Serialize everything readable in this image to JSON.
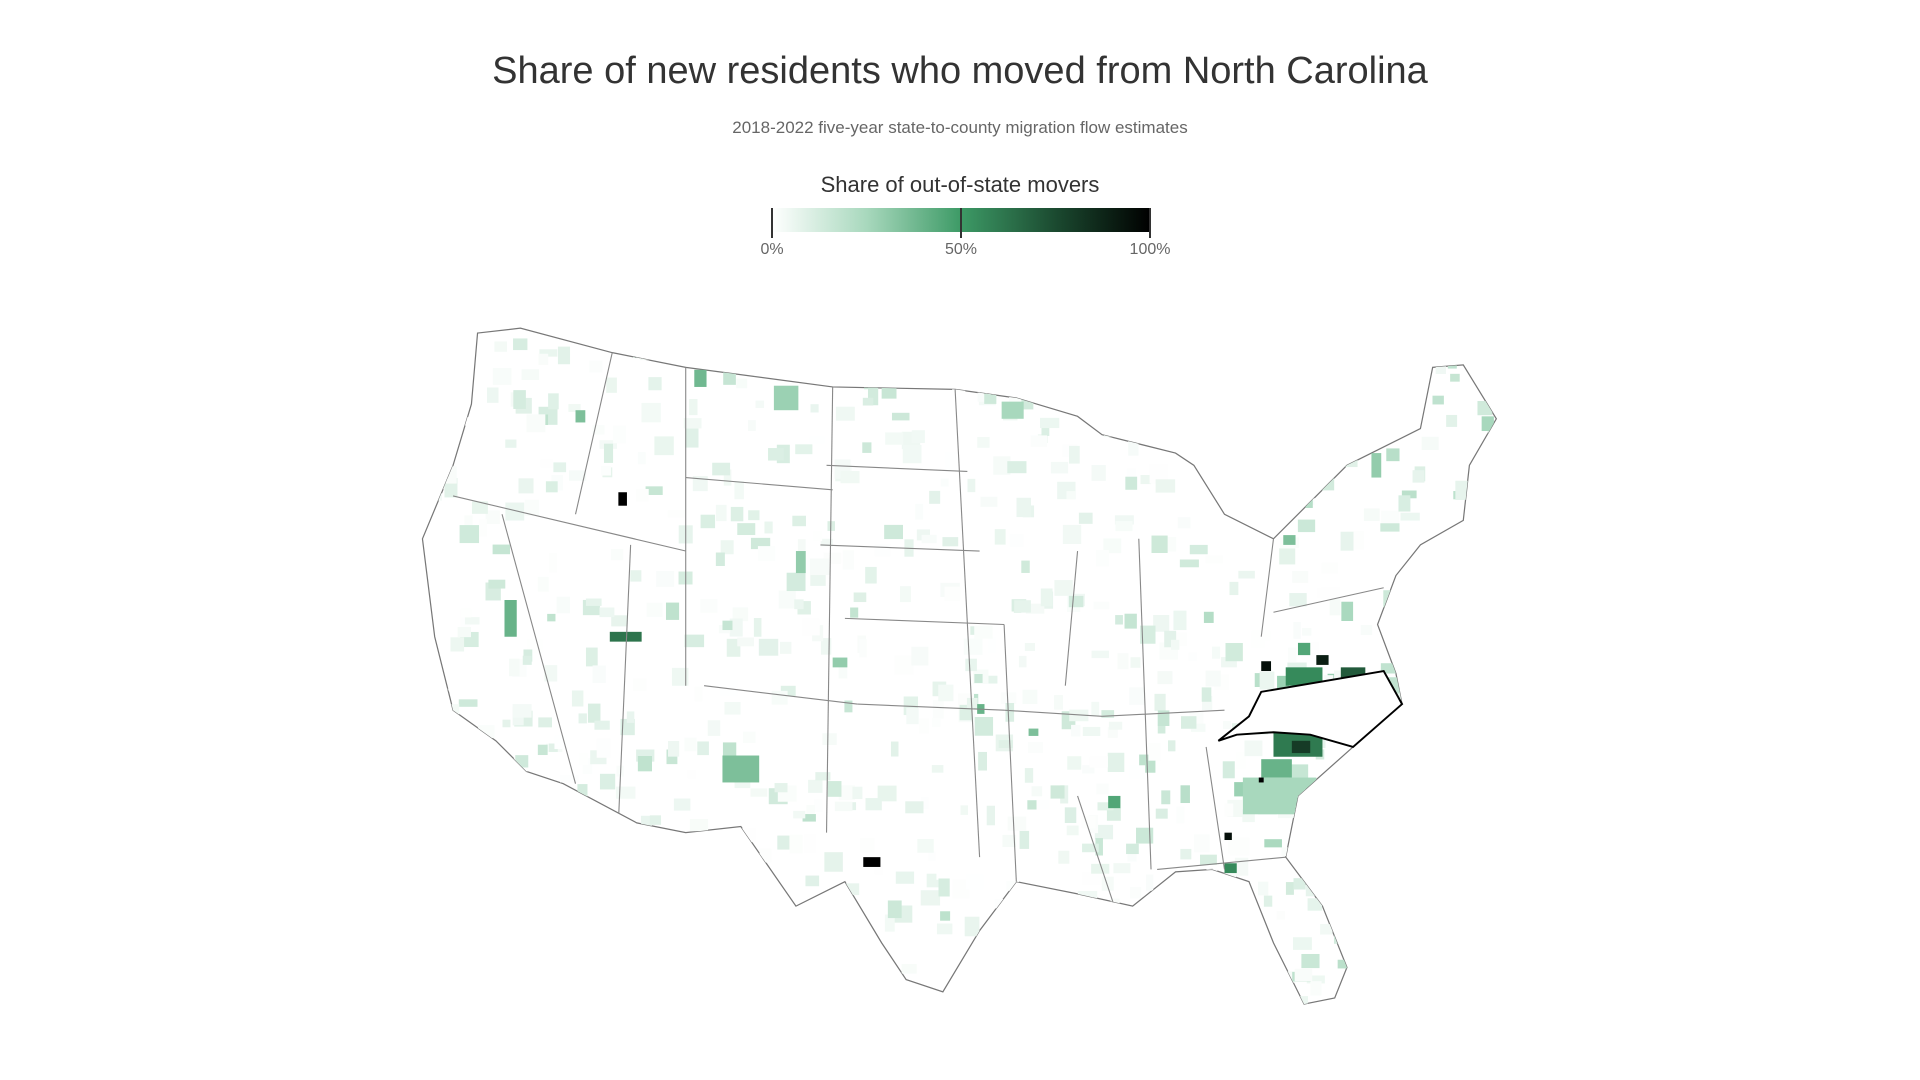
{
  "title": "Share of new residents who moved from North Carolina",
  "subtitle": "2018-2022 five-year state-to-county migration flow estimates",
  "legend": {
    "title": "Share of out-of-state movers",
    "ticks": [
      "0%",
      "50%",
      "100%"
    ],
    "range": [
      0,
      100
    ],
    "colors": [
      "#ffffff",
      "#3d9a66",
      "#000000"
    ]
  },
  "map": {
    "origin_state": "North Carolina",
    "outline_color": "#777777",
    "origin_outline_color": "#000000"
  }
}
